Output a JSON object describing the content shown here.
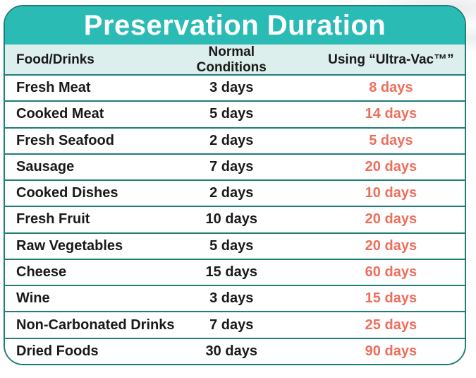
{
  "title": "Preservation Duration",
  "table": {
    "columns": [
      "Food/Drinks",
      "Normal Conditions",
      "Using “Ultra-Vac™”"
    ],
    "rows": [
      {
        "food": "Fresh Meat",
        "normal": "3 days",
        "ultravac": "8 days"
      },
      {
        "food": "Cooked Meat",
        "normal": "5 days",
        "ultravac": "14 days"
      },
      {
        "food": "Fresh Seafood",
        "normal": "2 days",
        "ultravac": "5 days"
      },
      {
        "food": "Sausage",
        "normal": "7 days",
        "ultravac": "20 days"
      },
      {
        "food": "Cooked Dishes",
        "normal": "2 days",
        "ultravac": "10 days"
      },
      {
        "food": "Fresh Fruit",
        "normal": "10 days",
        "ultravac": "20 days"
      },
      {
        "food": "Raw Vegetables",
        "normal": "5 days",
        "ultravac": "20 days"
      },
      {
        "food": "Cheese",
        "normal": "15 days",
        "ultravac": "60 days"
      },
      {
        "food": "Wine",
        "normal": "3 days",
        "ultravac": "15 days"
      },
      {
        "food": "Non-Carbonated Drinks",
        "normal": "7 days",
        "ultravac": "25 days"
      },
      {
        "food": "Dried Foods",
        "normal": "30 days",
        "ultravac": "90 days"
      }
    ]
  },
  "colors": {
    "teal": "#2abcb4",
    "teal-dark": "#1e7e78",
    "mint": "#ddefed",
    "coral": "#ee6e5c",
    "ink": "#191919",
    "bg": "#ffffff"
  },
  "chart_data": {
    "type": "table",
    "title": "Preservation Duration",
    "columns": [
      "Food/Drinks",
      "Normal Conditions",
      "Using “Ultra-Vac™”"
    ],
    "unit": "days",
    "categories": [
      "Fresh Meat",
      "Cooked Meat",
      "Fresh Seafood",
      "Sausage",
      "Cooked Dishes",
      "Fresh Fruit",
      "Raw Vegetables",
      "Cheese",
      "Wine",
      "Non-Carbonated Drinks",
      "Dried Foods"
    ],
    "series": [
      {
        "name": "Normal Conditions",
        "values": [
          3,
          5,
          2,
          7,
          2,
          10,
          5,
          15,
          3,
          7,
          30
        ]
      },
      {
        "name": "Using “Ultra-Vac™”",
        "values": [
          8,
          14,
          5,
          20,
          10,
          20,
          20,
          60,
          15,
          25,
          90
        ]
      }
    ]
  }
}
